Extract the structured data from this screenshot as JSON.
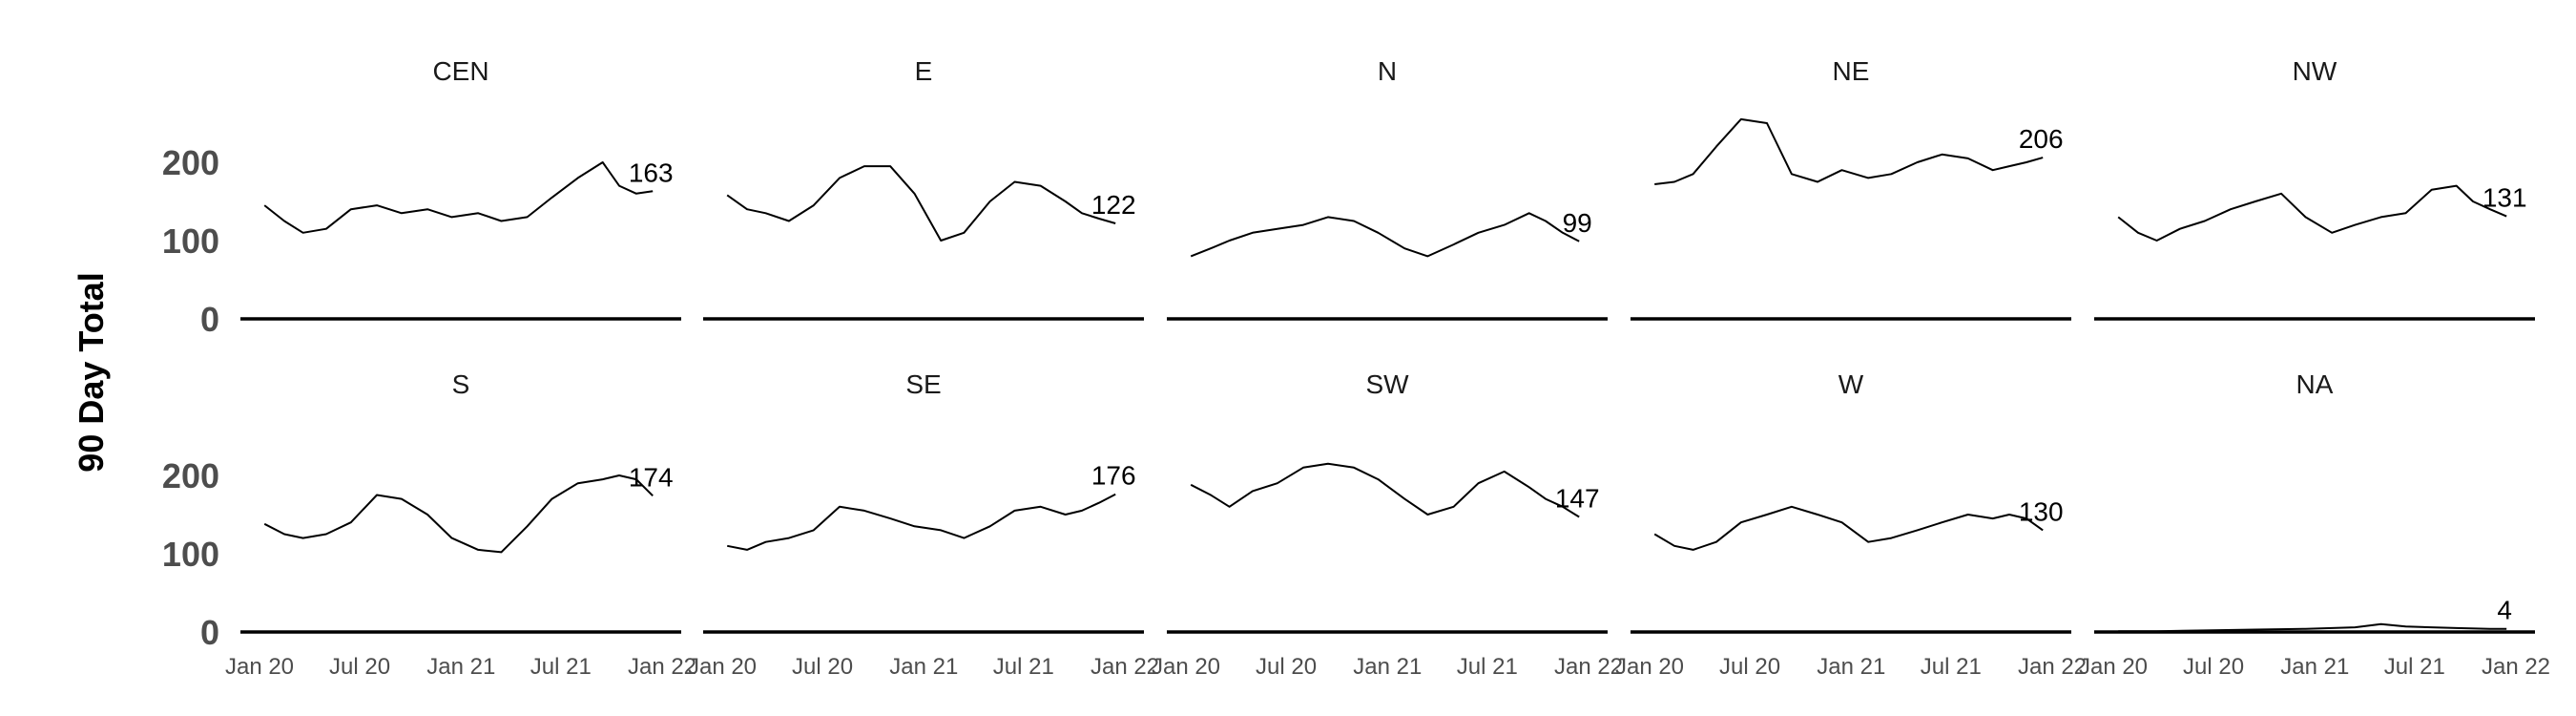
{
  "chart_data": {
    "type": "line",
    "ylabel": "90 Day Total",
    "ylim": [
      0,
      230
    ],
    "y_ticks": [
      "0",
      "100",
      "200"
    ],
    "y_tick_values": [
      0,
      100,
      200
    ],
    "x_ticks": [
      "Jan 20",
      "Jul 20",
      "Jan 21",
      "Jul 21",
      "Jan 22"
    ],
    "x_tick_values": [
      "2020-01-01",
      "2020-07-01",
      "2021-01-01",
      "2021-07-01",
      "2022-01-01"
    ],
    "grid": false,
    "line_color": "#000000",
    "facets": [
      {
        "name": "CEN",
        "end_label": "163",
        "x": [
          "2020-01-10",
          "2020-02-15",
          "2020-03-20",
          "2020-05-01",
          "2020-06-15",
          "2020-08-01",
          "2020-09-15",
          "2020-11-01",
          "2020-12-15",
          "2021-02-01",
          "2021-03-15",
          "2021-05-01",
          "2021-06-15",
          "2021-08-01",
          "2021-09-15",
          "2021-10-15",
          "2021-11-15",
          "2021-12-15"
        ],
        "y": [
          145,
          125,
          110,
          115,
          140,
          145,
          135,
          140,
          130,
          135,
          125,
          130,
          155,
          180,
          200,
          170,
          160,
          163
        ]
      },
      {
        "name": "E",
        "end_label": "122",
        "x": [
          "2020-01-10",
          "2020-02-15",
          "2020-03-20",
          "2020-05-01",
          "2020-06-15",
          "2020-08-01",
          "2020-09-15",
          "2020-11-01",
          "2020-12-15",
          "2021-02-01",
          "2021-03-15",
          "2021-05-01",
          "2021-06-15",
          "2021-08-01",
          "2021-09-15",
          "2021-10-15",
          "2021-11-15",
          "2021-12-15"
        ],
        "y": [
          158,
          140,
          135,
          125,
          145,
          180,
          195,
          195,
          160,
          100,
          110,
          150,
          175,
          170,
          150,
          135,
          128,
          122
        ]
      },
      {
        "name": "N",
        "end_label": "99",
        "x": [
          "2020-01-10",
          "2020-02-15",
          "2020-03-20",
          "2020-05-01",
          "2020-06-15",
          "2020-08-01",
          "2020-09-15",
          "2020-11-01",
          "2020-12-15",
          "2021-02-01",
          "2021-03-15",
          "2021-05-01",
          "2021-06-15",
          "2021-08-01",
          "2021-09-15",
          "2021-10-15",
          "2021-11-15",
          "2021-12-15"
        ],
        "y": [
          80,
          90,
          100,
          110,
          115,
          120,
          130,
          125,
          110,
          90,
          80,
          95,
          110,
          120,
          135,
          125,
          110,
          99
        ]
      },
      {
        "name": "NE",
        "end_label": "206",
        "x": [
          "2020-01-10",
          "2020-02-15",
          "2020-03-20",
          "2020-05-01",
          "2020-06-15",
          "2020-08-01",
          "2020-09-15",
          "2020-11-01",
          "2020-12-15",
          "2021-02-01",
          "2021-03-15",
          "2021-05-01",
          "2021-06-15",
          "2021-08-01",
          "2021-09-15",
          "2021-10-15",
          "2021-11-15",
          "2021-12-15"
        ],
        "y": [
          172,
          175,
          185,
          220,
          255,
          250,
          185,
          175,
          190,
          180,
          185,
          200,
          210,
          205,
          190,
          195,
          200,
          206
        ]
      },
      {
        "name": "NW",
        "end_label": "131",
        "x": [
          "2020-01-10",
          "2020-02-15",
          "2020-03-20",
          "2020-05-01",
          "2020-06-15",
          "2020-08-01",
          "2020-09-15",
          "2020-11-01",
          "2020-12-15",
          "2021-02-01",
          "2021-03-15",
          "2021-05-01",
          "2021-06-15",
          "2021-08-01",
          "2021-09-15",
          "2021-10-15",
          "2021-11-15",
          "2021-12-15"
        ],
        "y": [
          130,
          110,
          100,
          115,
          125,
          140,
          150,
          160,
          130,
          110,
          120,
          130,
          135,
          165,
          170,
          150,
          140,
          131
        ]
      },
      {
        "name": "S",
        "end_label": "174",
        "x": [
          "2020-01-10",
          "2020-02-15",
          "2020-03-20",
          "2020-05-01",
          "2020-06-15",
          "2020-08-01",
          "2020-09-15",
          "2020-11-01",
          "2020-12-15",
          "2021-02-01",
          "2021-03-15",
          "2021-05-01",
          "2021-06-15",
          "2021-08-01",
          "2021-09-15",
          "2021-10-15",
          "2021-11-15",
          "2021-12-15"
        ],
        "y": [
          138,
          125,
          120,
          125,
          140,
          175,
          170,
          150,
          120,
          105,
          102,
          135,
          170,
          190,
          195,
          200,
          195,
          174
        ]
      },
      {
        "name": "SE",
        "end_label": "176",
        "x": [
          "2020-01-10",
          "2020-02-15",
          "2020-03-20",
          "2020-05-01",
          "2020-06-15",
          "2020-08-01",
          "2020-09-15",
          "2020-11-01",
          "2020-12-15",
          "2021-02-01",
          "2021-03-15",
          "2021-05-01",
          "2021-06-15",
          "2021-08-01",
          "2021-09-15",
          "2021-10-15",
          "2021-11-15",
          "2021-12-15"
        ],
        "y": [
          110,
          105,
          115,
          120,
          130,
          160,
          155,
          145,
          135,
          130,
          120,
          135,
          155,
          160,
          150,
          155,
          165,
          176
        ]
      },
      {
        "name": "SW",
        "end_label": "147",
        "x": [
          "2020-01-10",
          "2020-02-15",
          "2020-03-20",
          "2020-05-01",
          "2020-06-15",
          "2020-08-01",
          "2020-09-15",
          "2020-11-01",
          "2020-12-15",
          "2021-02-01",
          "2021-03-15",
          "2021-05-01",
          "2021-06-15",
          "2021-08-01",
          "2021-09-15",
          "2021-10-15",
          "2021-11-15",
          "2021-12-15"
        ],
        "y": [
          188,
          175,
          160,
          180,
          190,
          210,
          215,
          210,
          195,
          170,
          150,
          160,
          190,
          205,
          185,
          170,
          160,
          147
        ]
      },
      {
        "name": "W",
        "end_label": "130",
        "x": [
          "2020-01-10",
          "2020-02-15",
          "2020-03-20",
          "2020-05-01",
          "2020-06-15",
          "2020-08-01",
          "2020-09-15",
          "2020-11-01",
          "2020-12-15",
          "2021-02-01",
          "2021-03-15",
          "2021-05-01",
          "2021-06-15",
          "2021-08-01",
          "2021-09-15",
          "2021-10-15",
          "2021-11-15",
          "2021-12-15"
        ],
        "y": [
          125,
          110,
          105,
          115,
          140,
          150,
          160,
          150,
          140,
          115,
          120,
          130,
          140,
          150,
          145,
          150,
          145,
          130
        ]
      },
      {
        "name": "NA",
        "end_label": "4",
        "x": [
          "2020-01-10",
          "2020-03-20",
          "2020-06-15",
          "2020-09-15",
          "2020-12-15",
          "2021-03-15",
          "2021-05-01",
          "2021-06-15",
          "2021-09-15",
          "2021-11-15",
          "2021-12-15"
        ],
        "y": [
          1,
          1,
          2,
          3,
          4,
          6,
          10,
          7,
          5,
          4,
          4
        ]
      }
    ]
  }
}
